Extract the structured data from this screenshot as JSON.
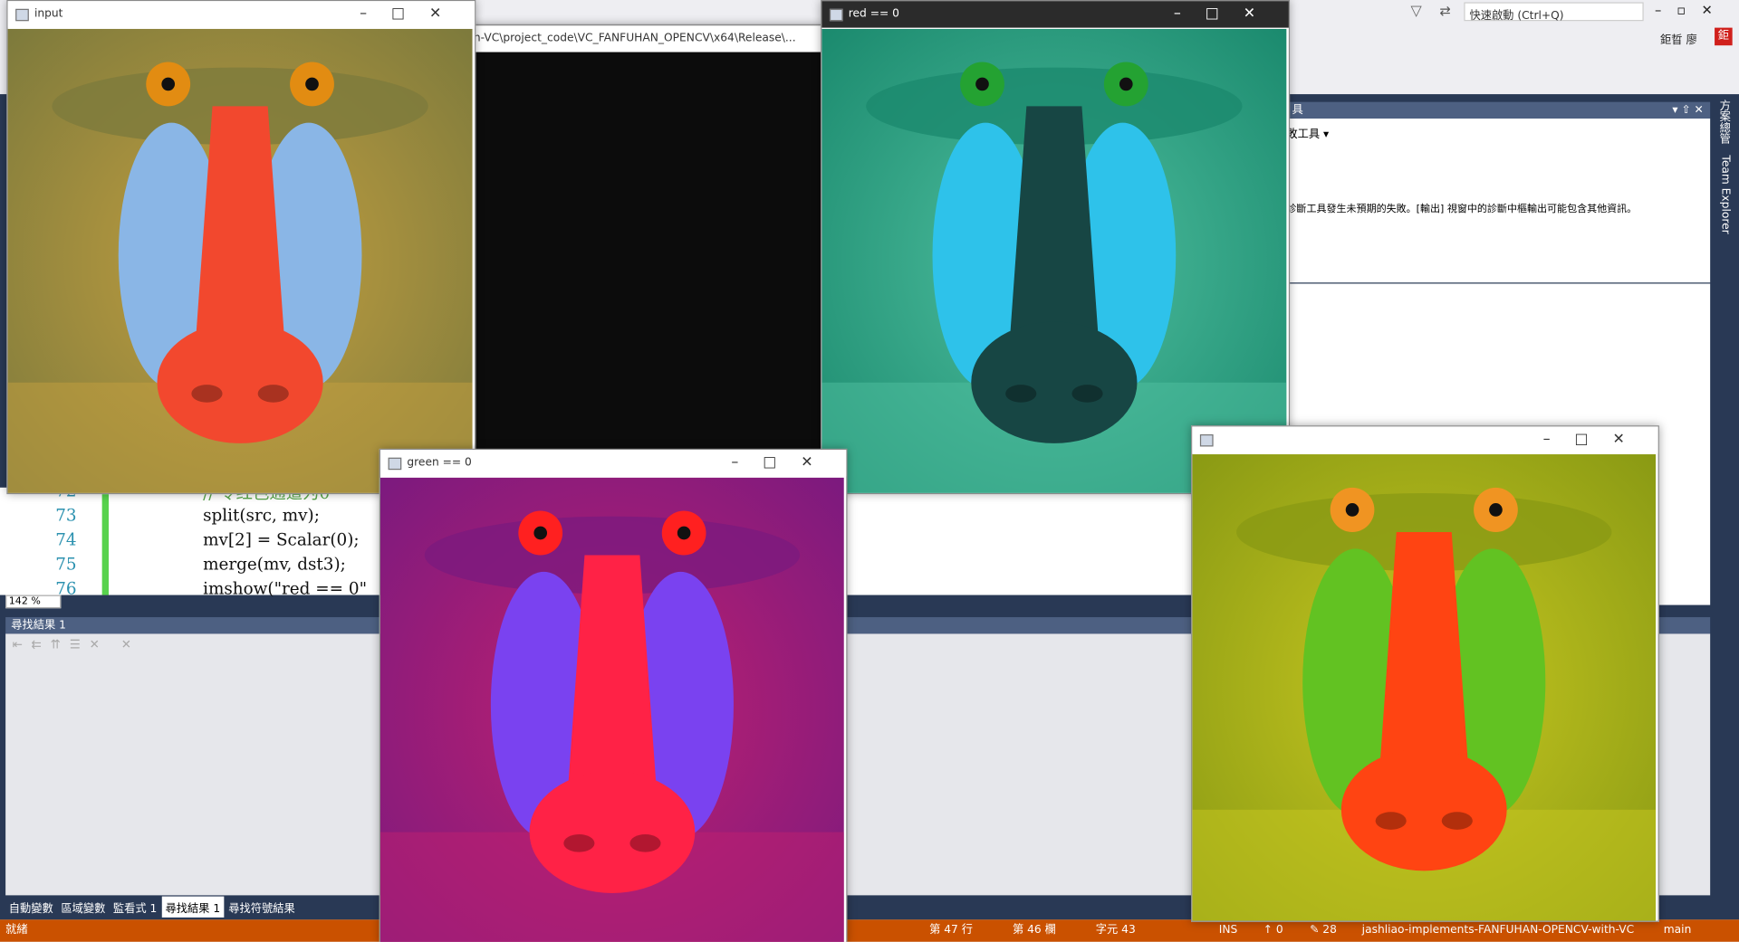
{
  "top_bar": {
    "search": "快速啟動 (Ctrl+Q)",
    "user": "鉅晢 廖"
  },
  "console": {
    "title": "h-VC\\project_code\\VC_FANFUHAN_OPENCV\\x64\\Release\\..."
  },
  "diagnostics": {
    "header": "具",
    "toolbar": "敗工具 ▾",
    "message": "診斷工具發生未預期的失敗。[輸出] 視窗中的診斷中樞輸出可能包含其他資訊。"
  },
  "side_tabs": [
    "方案總管",
    "Team Explorer"
  ],
  "editor": {
    "line_numbers": [
      "72",
      "73",
      "74",
      "75",
      "76"
    ],
    "lines": [
      "// 令红色通道为0",
      "split(src, mv);",
      "mv[2] = Scalar(0);",
      "merge(mv, dst3);",
      "imshow(\"red == 0\""
    ],
    "zoom": "142 %"
  },
  "find_panel": {
    "title": "尋找結果 1"
  },
  "bottom_tabs": [
    "自動變數",
    "區域變數",
    "監看式 1",
    "尋找結果 1",
    "尋找符號結果"
  ],
  "status_bar": {
    "ready": "就緒",
    "line": "第 47 行",
    "column": "第 46 欄",
    "char": "字元 43",
    "mode": "INS",
    "up": "↑ 0",
    "edits": "✎ 28",
    "repo": "jashliao-implements-FANFUHAN-OPENCV-with-VC",
    "branch": "main"
  },
  "windows": [
    "input",
    "red == 0",
    "green == 0",
    ""
  ]
}
